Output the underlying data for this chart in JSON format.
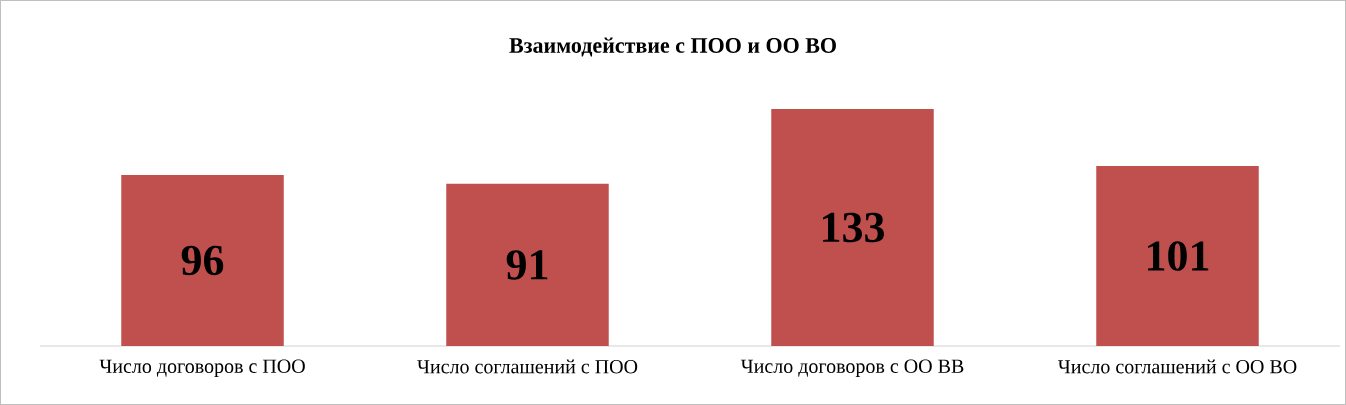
{
  "chart_data": {
    "type": "bar",
    "title": "Взаимодействие с ПОО и ОО ВО",
    "categories": [
      "Число договоров с ПОО",
      "Число соглашений с ПОО",
      "Число договоров с ОО ВВ",
      "Число соглашений с ОО ВО"
    ],
    "values": [
      96,
      91,
      133,
      101
    ],
    "color": "#c0504d",
    "tick_labels": "x",
    "data_labels": true
  }
}
